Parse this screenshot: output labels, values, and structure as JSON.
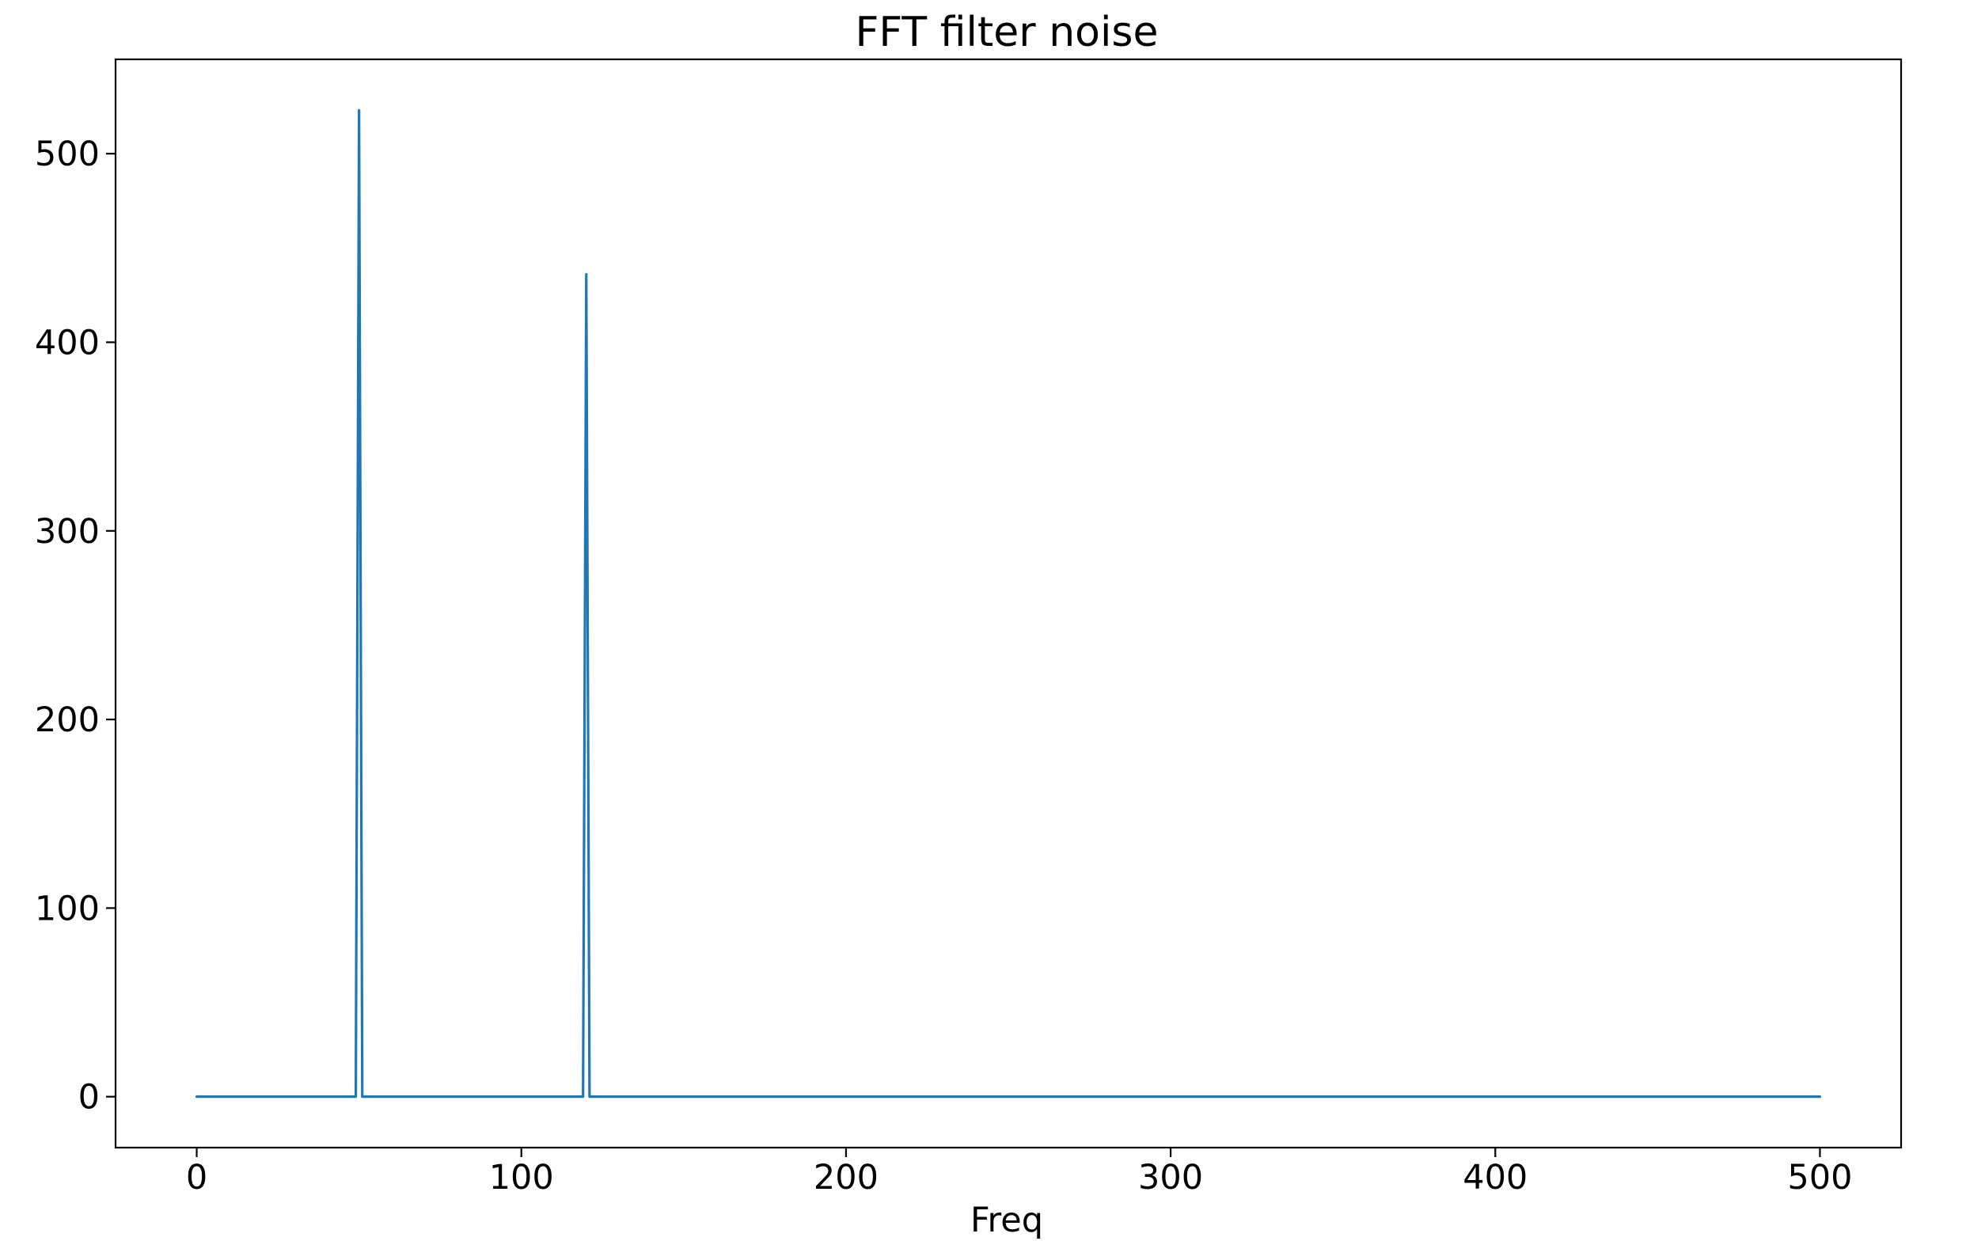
{
  "chart_data": {
    "type": "line",
    "title": "FFT filter noise",
    "xlabel": "Freq",
    "ylabel": "",
    "xlim": [
      -25,
      525
    ],
    "ylim": [
      -27,
      550
    ],
    "xticks": [
      0,
      100,
      200,
      300,
      400,
      500
    ],
    "yticks": [
      0,
      100,
      200,
      300,
      400,
      500
    ],
    "grid": false,
    "series": [
      {
        "color": "#1f77b4",
        "x": [
          0,
          49,
          50,
          51,
          119,
          120,
          121,
          500
        ],
        "y": [
          0,
          0,
          523,
          0,
          0,
          436,
          0,
          0
        ]
      }
    ]
  }
}
